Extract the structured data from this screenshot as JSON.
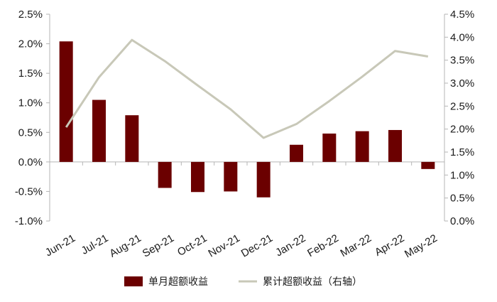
{
  "chart_data": {
    "type": "bar+line",
    "categories": [
      "Jun-21",
      "Jul-21",
      "Aug-21",
      "Sep-21",
      "Oct-21",
      "Nov-21",
      "Dec-21",
      "Jan-22",
      "Feb-22",
      "Mar-22",
      "Apr-22",
      "May-22"
    ],
    "series": [
      {
        "name": "单月超额收益",
        "type": "bar",
        "axis": "left",
        "color": "#6b0000",
        "values": [
          2.04,
          1.05,
          0.79,
          -0.44,
          -0.51,
          -0.5,
          -0.6,
          0.29,
          0.48,
          0.52,
          0.54,
          -0.12
        ]
      },
      {
        "name": "累计超额收益（右轴）",
        "type": "line",
        "axis": "right",
        "color": "#c8c8b8",
        "values": [
          2.04,
          3.13,
          3.94,
          3.48,
          2.95,
          2.43,
          1.81,
          2.11,
          2.61,
          3.14,
          3.7,
          3.58
        ]
      }
    ],
    "y_left": {
      "ylim": [
        -1.0,
        2.5
      ],
      "ticks": [
        "-1.0%",
        "-0.5%",
        "0.0%",
        "0.5%",
        "1.0%",
        "1.5%",
        "2.0%",
        "2.5%"
      ]
    },
    "y_right": {
      "ylim": [
        0.0,
        4.5
      ],
      "ticks": [
        "0.0%",
        "0.5%",
        "1.0%",
        "1.5%",
        "2.0%",
        "2.5%",
        "3.0%",
        "3.5%",
        "4.0%",
        "4.5%"
      ]
    },
    "legend_position": "bottom-center",
    "grid": false
  }
}
